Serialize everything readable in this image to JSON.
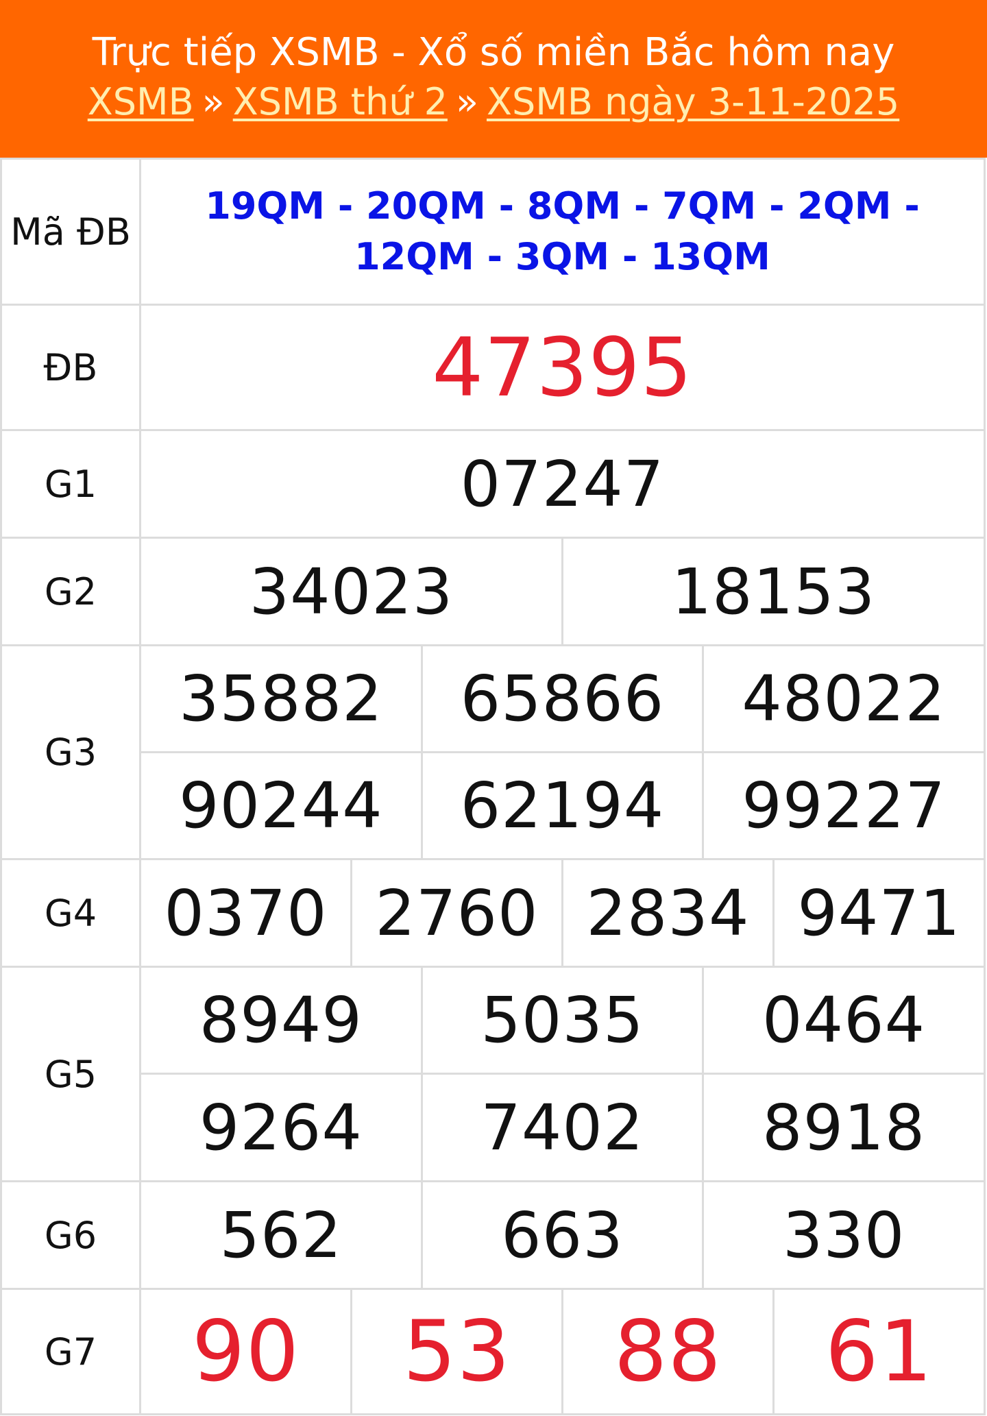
{
  "header": {
    "title": "Trực tiếp XSMB - Xổ số miền Bắc hôm nay",
    "breadcrumb": [
      {
        "label": "XSMB"
      },
      {
        "label": "XSMB thứ 2"
      },
      {
        "label": "XSMB ngày 3-11-2025"
      }
    ],
    "separator": "»"
  },
  "colors": {
    "header_bg": "#ff6600",
    "link": "#ffeeb0",
    "code_blue": "#0a14e6",
    "prize_red": "#e5202e"
  },
  "results": {
    "ma_db": {
      "label": "Mã ĐB",
      "value": "19QM - 20QM - 8QM - 7QM - 2QM - 12QM - 3QM - 13QM"
    },
    "db": {
      "label": "ĐB",
      "values": [
        "47395"
      ]
    },
    "g1": {
      "label": "G1",
      "values": [
        "07247"
      ]
    },
    "g2": {
      "label": "G2",
      "values": [
        "34023",
        "18153"
      ]
    },
    "g3": {
      "label": "G3",
      "values": [
        "35882",
        "65866",
        "48022",
        "90244",
        "62194",
        "99227"
      ]
    },
    "g4": {
      "label": "G4",
      "values": [
        "0370",
        "2760",
        "2834",
        "9471"
      ]
    },
    "g5": {
      "label": "G5",
      "values": [
        "8949",
        "5035",
        "0464",
        "9264",
        "7402",
        "8918"
      ]
    },
    "g6": {
      "label": "G6",
      "values": [
        "562",
        "663",
        "330"
      ]
    },
    "g7": {
      "label": "G7",
      "values": [
        "90",
        "53",
        "88",
        "61"
      ]
    }
  }
}
